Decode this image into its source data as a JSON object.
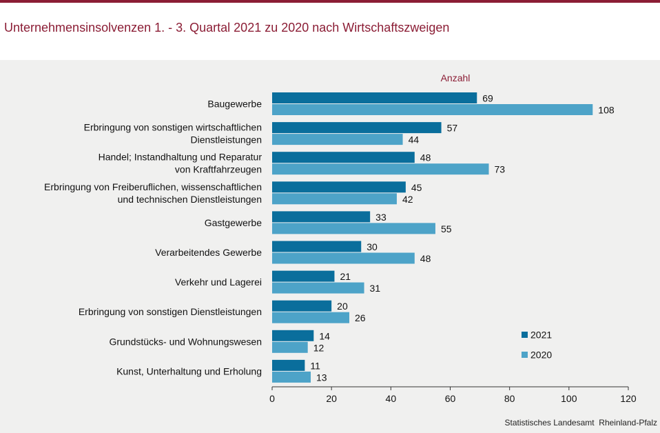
{
  "title": "Unternehmensinsolvenzen 1. -  3. Quartal 2021 zu 2020 nach Wirtschaftszweigen",
  "footer": "Statistisches Landesamt  Rheinland-Pfalz",
  "chart_data": {
    "type": "bar",
    "orientation": "horizontal",
    "unit_label": "Anzahl",
    "categories": [
      [
        "Baugewerbe"
      ],
      [
        "Erbringung von sonstigen wirtschaftlichen",
        "Dienstleistungen"
      ],
      [
        "Handel; Instandhaltung und Reparatur",
        "von Kraftfahrzeugen"
      ],
      [
        "Erbringung von Freiberuflichen, wissenschaftlichen",
        "und technischen Dienstleistungen"
      ],
      [
        "Gastgewerbe"
      ],
      [
        "Verarbeitendes Gewerbe"
      ],
      [
        "Verkehr und Lagerei"
      ],
      [
        "Erbringung von sonstigen Dienstleistungen"
      ],
      [
        "Grundstücks- und Wohnungswesen"
      ],
      [
        "Kunst, Unterhaltung und Erholung"
      ]
    ],
    "series": [
      {
        "name": "2021",
        "color": "#0a6e9c",
        "values": [
          69,
          57,
          48,
          45,
          33,
          30,
          21,
          20,
          14,
          11
        ]
      },
      {
        "name": "2020",
        "color": "#4da3c8",
        "values": [
          108,
          44,
          73,
          42,
          55,
          48,
          31,
          26,
          12,
          13
        ]
      }
    ],
    "xlim": [
      0,
      120
    ],
    "xticks": [
      0,
      20,
      40,
      60,
      80,
      100,
      120
    ],
    "legend": "bottom-right",
    "colors": {
      "title": "#8b1d35",
      "unit_label": "#8b1d35"
    }
  }
}
